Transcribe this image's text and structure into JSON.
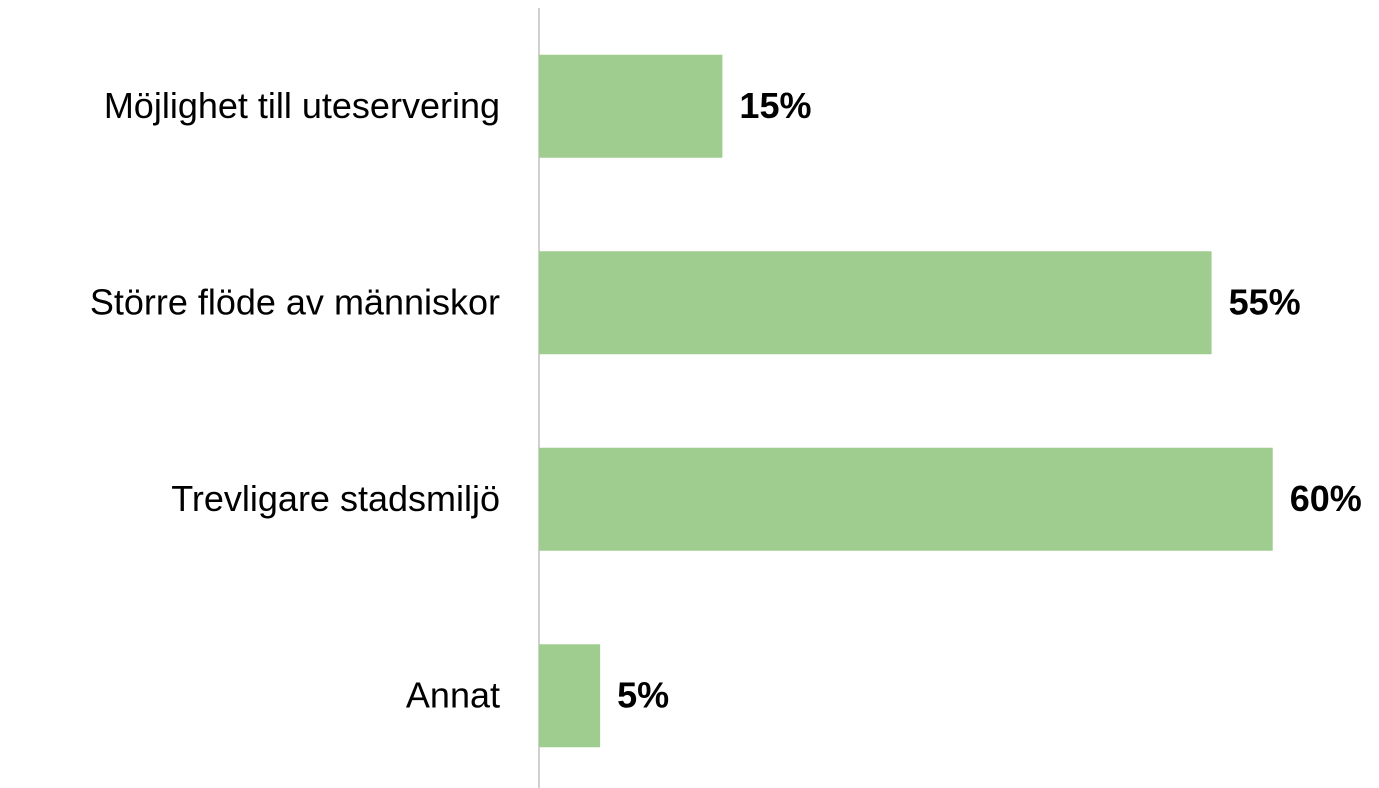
{
  "chart_data": {
    "type": "barh",
    "categories": [
      "Möjlighet till uteservering",
      "Större flöde av människor",
      "Trevligare stadsmiljö",
      "Annat"
    ],
    "values": [
      15,
      55,
      60,
      5
    ],
    "value_labels": [
      "15%",
      "55%",
      "60%",
      "5%"
    ],
    "color": "#9fcd8f",
    "xlim": [
      0,
      70
    ]
  }
}
